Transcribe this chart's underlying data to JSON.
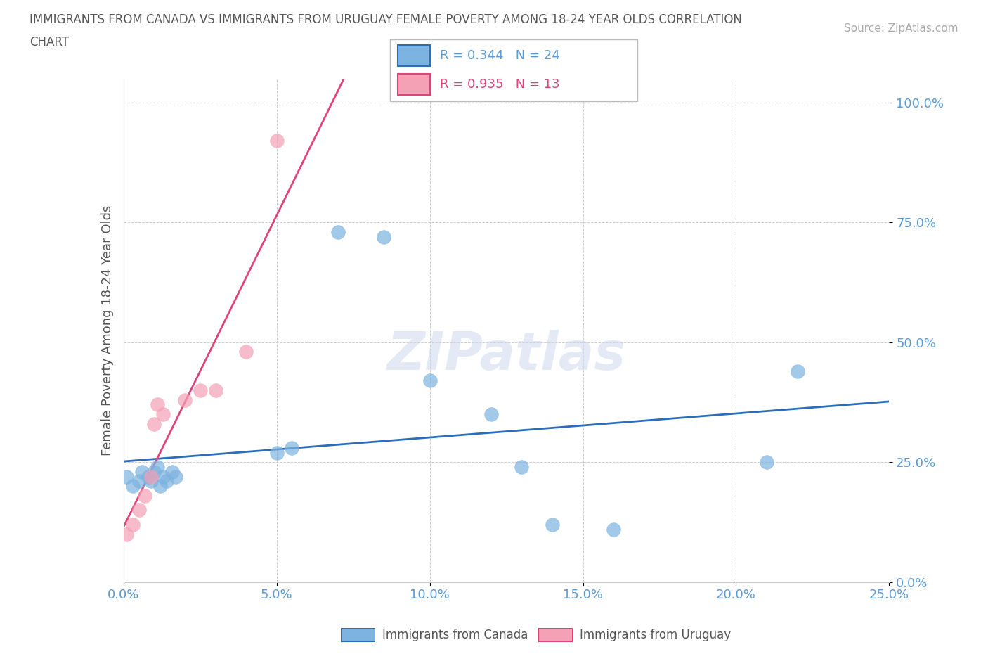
{
  "title_line1": "IMMIGRANTS FROM CANADA VS IMMIGRANTS FROM URUGUAY FEMALE POVERTY AMONG 18-24 YEAR OLDS CORRELATION",
  "title_line2": "CHART",
  "source": "Source: ZipAtlas.com",
  "ylabel": "Female Poverty Among 18-24 Year Olds",
  "xlabel_canada": "Immigrants from Canada",
  "xlabel_uruguay": "Immigrants from Uruguay",
  "watermark": "ZIPatlas",
  "canada_R": 0.344,
  "canada_N": 24,
  "uruguay_R": 0.935,
  "uruguay_N": 13,
  "canada_color": "#7db3e0",
  "uruguay_color": "#f4a0b5",
  "canada_line_color": "#2a6ebb",
  "uruguay_line_color": "#e0427a",
  "xlim": [
    0.0,
    0.25
  ],
  "ylim": [
    0.0,
    1.05
  ],
  "xticks": [
    0.0,
    0.05,
    0.1,
    0.15,
    0.2,
    0.25
  ],
  "yticks": [
    0.0,
    0.25,
    0.5,
    0.75,
    1.0
  ],
  "canada_x": [
    0.001,
    0.003,
    0.005,
    0.006,
    0.008,
    0.009,
    0.01,
    0.011,
    0.012,
    0.013,
    0.014,
    0.016,
    0.017,
    0.05,
    0.055,
    0.07,
    0.085,
    0.1,
    0.12,
    0.13,
    0.14,
    0.16,
    0.21,
    0.22
  ],
  "canada_y": [
    0.22,
    0.2,
    0.21,
    0.23,
    0.22,
    0.21,
    0.23,
    0.24,
    0.2,
    0.22,
    0.21,
    0.23,
    0.22,
    0.27,
    0.28,
    0.73,
    0.72,
    0.42,
    0.35,
    0.24,
    0.12,
    0.11,
    0.25,
    0.44
  ],
  "uruguay_x": [
    0.001,
    0.003,
    0.005,
    0.007,
    0.009,
    0.01,
    0.011,
    0.013,
    0.02,
    0.025,
    0.03,
    0.04,
    0.05
  ],
  "uruguay_y": [
    0.1,
    0.12,
    0.15,
    0.18,
    0.22,
    0.33,
    0.37,
    0.35,
    0.38,
    0.4,
    0.4,
    0.48,
    0.92
  ]
}
